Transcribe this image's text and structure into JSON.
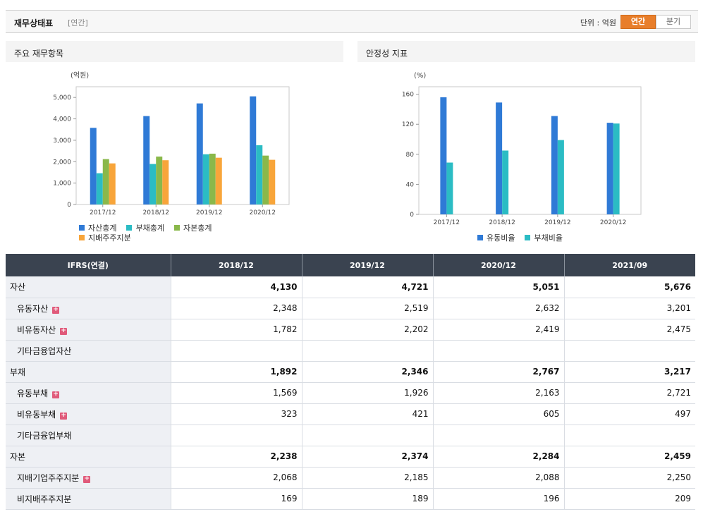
{
  "header": {
    "title": "재무상태표",
    "subtitle": "[연간]",
    "unit_label": "단위 : 억원",
    "toggle_annual": "연간",
    "toggle_quarter": "분기"
  },
  "left_panel": {
    "title": "주요 재무항목"
  },
  "right_panel": {
    "title": "안정성 지표"
  },
  "chart_data": [
    {
      "type": "bar",
      "unit_label": "(억원)",
      "categories": [
        "2017/12",
        "2018/12",
        "2019/12",
        "2020/12"
      ],
      "ylim": [
        0,
        5500
      ],
      "yticks": [
        0,
        1000,
        2000,
        3000,
        4000,
        5000
      ],
      "ytick_labels": [
        "0",
        "1,000",
        "2,000",
        "3,000",
        "4,000",
        "5,000"
      ],
      "series": [
        {
          "name": "자산총계",
          "color": "#2f7ad6",
          "values": [
            3580,
            4130,
            4721,
            5051
          ]
        },
        {
          "name": "부채총계",
          "color": "#2bbcc4",
          "values": [
            1460,
            1892,
            2346,
            2767
          ]
        },
        {
          "name": "자본총계",
          "color": "#8ab84a",
          "values": [
            2120,
            2238,
            2374,
            2284
          ]
        },
        {
          "name": "지배주주지분",
          "color": "#f8a53a",
          "values": [
            1920,
            2068,
            2185,
            2088
          ]
        }
      ],
      "legend_position": "bottom-left",
      "grid": false
    },
    {
      "type": "bar",
      "unit_label": "(%)",
      "categories": [
        "2017/12",
        "2018/12",
        "2019/12",
        "2020/12"
      ],
      "ylim": [
        0,
        170
      ],
      "yticks": [
        0,
        40,
        80,
        120,
        160
      ],
      "ytick_labels": [
        "0",
        "40",
        "80",
        "120",
        "160"
      ],
      "series": [
        {
          "name": "유동비율",
          "color": "#2f7ad6",
          "values": [
            156,
            149,
            131,
            122
          ]
        },
        {
          "name": "부채비율",
          "color": "#2bbcc4",
          "values": [
            69,
            85,
            99,
            121
          ]
        }
      ],
      "legend_position": "bottom-center",
      "grid": false
    }
  ],
  "table": {
    "headers": [
      "IFRS(연결)",
      "2018/12",
      "2019/12",
      "2020/12",
      "2021/09"
    ],
    "rows": [
      {
        "label": "자산",
        "level": "main",
        "expand": false,
        "values": [
          "4,130",
          "4,721",
          "5,051",
          "5,676"
        ]
      },
      {
        "label": "유동자산",
        "level": "sub",
        "expand": true,
        "values": [
          "2,348",
          "2,519",
          "2,632",
          "3,201"
        ]
      },
      {
        "label": "비유동자산",
        "level": "sub",
        "expand": true,
        "values": [
          "1,782",
          "2,202",
          "2,419",
          "2,475"
        ]
      },
      {
        "label": "기타금융업자산",
        "level": "sub",
        "expand": false,
        "values": [
          "",
          "",
          "",
          ""
        ]
      },
      {
        "label": "부채",
        "level": "main",
        "expand": false,
        "values": [
          "1,892",
          "2,346",
          "2,767",
          "3,217"
        ]
      },
      {
        "label": "유동부채",
        "level": "sub",
        "expand": true,
        "values": [
          "1,569",
          "1,926",
          "2,163",
          "2,721"
        ]
      },
      {
        "label": "비유동부채",
        "level": "sub",
        "expand": true,
        "values": [
          "323",
          "421",
          "605",
          "497"
        ]
      },
      {
        "label": "기타금융업부채",
        "level": "sub",
        "expand": false,
        "values": [
          "",
          "",
          "",
          ""
        ]
      },
      {
        "label": "자본",
        "level": "main",
        "expand": false,
        "values": [
          "2,238",
          "2,374",
          "2,284",
          "2,459"
        ]
      },
      {
        "label": "지배기업주주지분",
        "level": "sub",
        "expand": true,
        "values": [
          "2,068",
          "2,185",
          "2,088",
          "2,250"
        ]
      },
      {
        "label": "비지배주주지분",
        "level": "sub",
        "expand": false,
        "values": [
          "169",
          "189",
          "196",
          "209"
        ]
      }
    ]
  }
}
